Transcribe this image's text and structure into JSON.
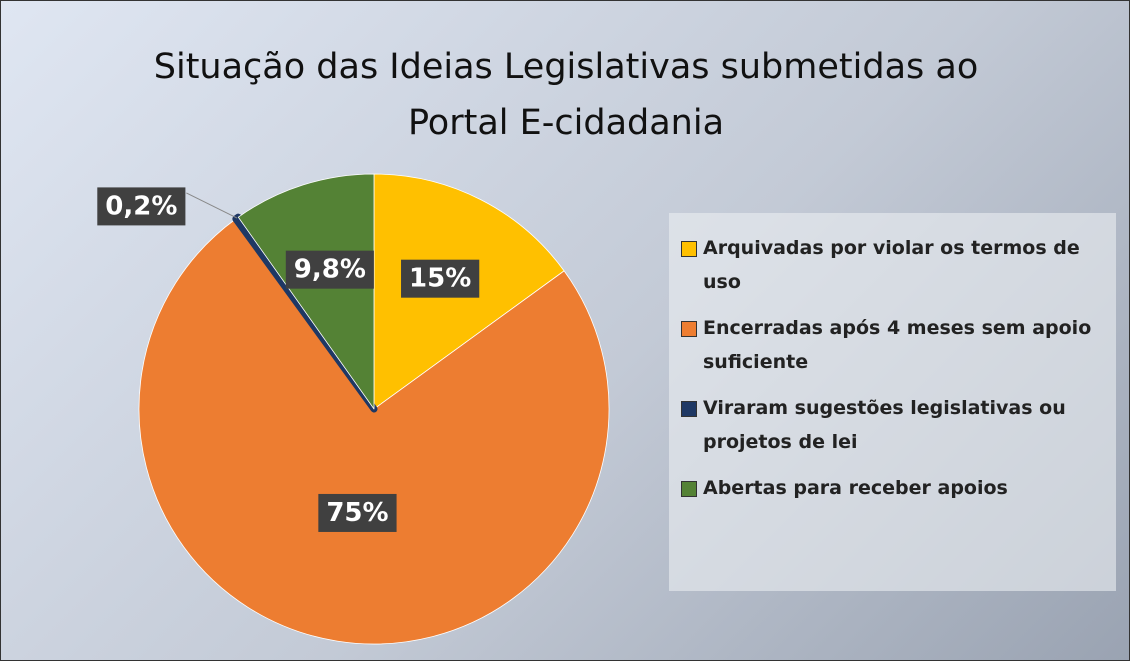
{
  "chart_data": {
    "type": "pie",
    "title": "Situação das Ideias Legislativas submetidas ao Portal E-cidadania",
    "categories": [
      "Arquivadas por violar os termos de uso",
      "Encerradas após 4 meses sem apoio suficiente",
      "Viraram sugestões legislativas ou projetos de lei",
      "Abertas para receber apoios"
    ],
    "values": [
      15,
      75,
      0.2,
      9.8
    ],
    "value_labels": [
      "15%",
      "75%",
      "0,2%",
      "9,8%"
    ],
    "colors": [
      "#ffc000",
      "#ed7d31",
      "#1f3864",
      "#548235"
    ],
    "legend": "right"
  }
}
